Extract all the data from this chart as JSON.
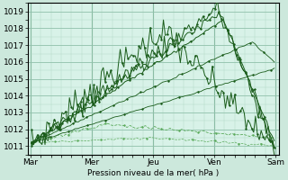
{
  "background_color": "#cce8dc",
  "plot_bg": "#d8f2e8",
  "grid_color_minor": "#b0d8c4",
  "grid_color_major": "#90c0aa",
  "line_dark": "#1a5c1a",
  "line_light": "#5aaa5a",
  "xlabel": "Pression niveau de la mer( hPa )",
  "x_tick_labels": [
    "Mar",
    "Mer",
    "Jeu",
    "Ven",
    "Sam"
  ],
  "ylim": [
    1010.5,
    1019.5
  ],
  "xlim": [
    -0.05,
    4.05
  ],
  "yticks": [
    1011,
    1012,
    1013,
    1014,
    1015,
    1016,
    1017,
    1018,
    1019
  ],
  "x_day_ticks": [
    0,
    1,
    2,
    3,
    4
  ],
  "figsize": [
    3.2,
    2.0
  ],
  "dpi": 100
}
